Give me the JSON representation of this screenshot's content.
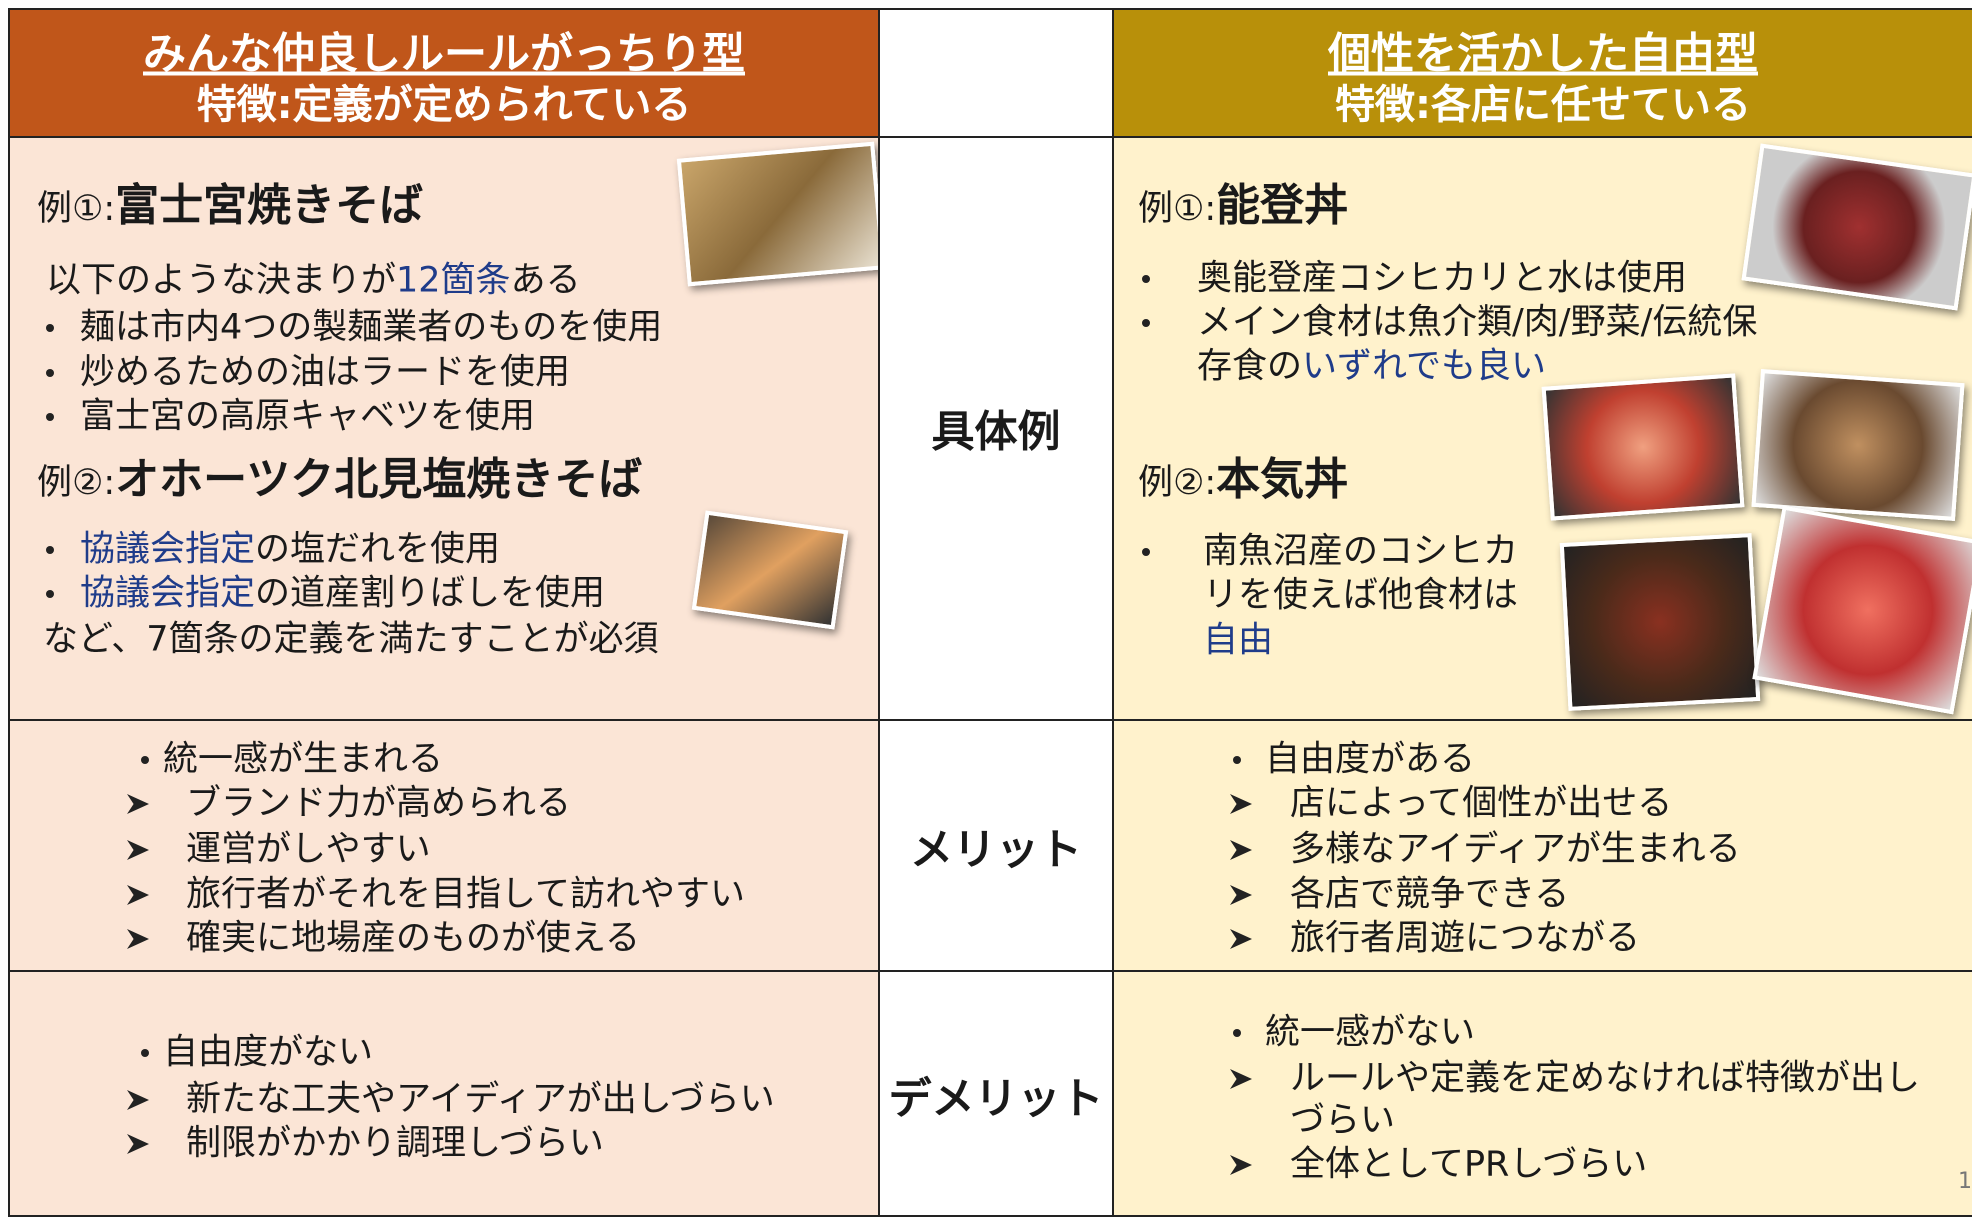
{
  "header": {
    "left": {
      "title": "みんな仲良しルールがっちり型",
      "subtitle": "特徴:定義が定められている"
    },
    "right": {
      "title": "個性を活かした自由型",
      "subtitle": "特徴:各店に任せている"
    }
  },
  "rows": [
    {
      "label": "具体例",
      "left": {
        "example1": {
          "prefix": "例①:",
          "name": "富士宮焼きそば"
        },
        "intro": [
          "以下のような決まりが",
          "12箇条",
          "ある"
        ],
        "rules1": [
          "麺は市内4つの製麺業者のものを使用",
          "炒めるための油はラードを使用",
          "富士宮の高原キャベツを使用"
        ],
        "example2": {
          "prefix": "例②:",
          "name": "オホーツク北見塩焼きそば"
        },
        "rules2": [
          [
            "協議会指定",
            "の塩だれを使用"
          ],
          [
            "協議会指定",
            "の道産割りばしを使用"
          ]
        ],
        "note": "など、7箇条の定義を満たすことが必須"
      },
      "right": {
        "example1": {
          "prefix": "例①:",
          "name": "能登丼"
        },
        "rules1": [
          [
            "奥能登産コシヒカリと水は使用"
          ],
          [
            "メイン食材は魚介類/肉/野菜/伝統保",
            "存食の",
            "いずれでも良い"
          ]
        ],
        "example2": {
          "prefix": "例②:",
          "name": "本気丼"
        },
        "rules2": [
          "南魚沼産のコシヒカ",
          "リを使えば他食材は",
          "自由"
        ]
      }
    },
    {
      "label": "メリット",
      "left": {
        "main": "統一感が生まれる",
        "subs": [
          "ブランド力が高められる",
          "運営がしやすい",
          "旅行者がそれを目指して訪れやすい",
          "確実に地場産のものが使える"
        ]
      },
      "right": {
        "main": "自由度がある",
        "subs": [
          "店によって個性が出せる",
          "多様なアイディアが生まれる",
          "各店で競争できる",
          "旅行者周遊につながる"
        ]
      }
    },
    {
      "label": "デメリット",
      "left": {
        "main": "自由度がない",
        "subs": [
          "新たな工夫やアイディアが出しづらい",
          "制限がかかり調理しづらい"
        ]
      },
      "right": {
        "main": "統一感がない",
        "subs": [
          [
            "ルールや定義を定めなければ特徴が出し",
            "づらい"
          ],
          "全体としてPRしづらい"
        ]
      }
    }
  ],
  "page_number": "1"
}
